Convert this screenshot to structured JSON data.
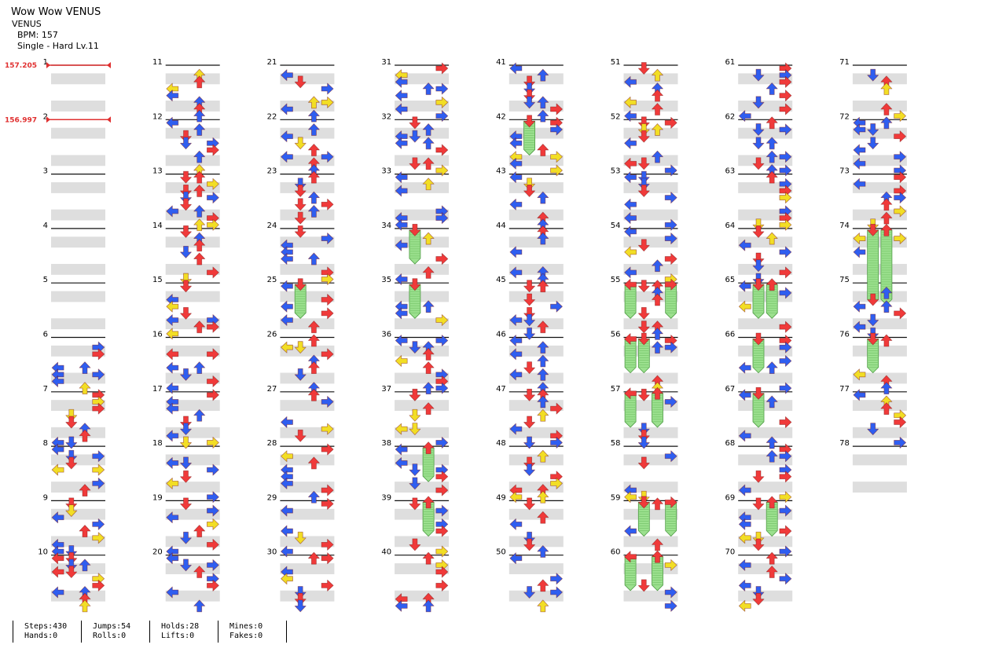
{
  "song": {
    "title": "Wow Wow VENUS",
    "artist": "VENUS",
    "bpm": "BPM: 157",
    "chart": "Single - Hard  Lv.11"
  },
  "bpm_changes": [
    {
      "measure": 1,
      "label": "157.205"
    },
    {
      "measure": 2,
      "label": "156.997"
    }
  ],
  "colors": {
    "left": "#2f5ef0",
    "down": "#f03a3a",
    "up": "#f03a3a",
    "right": "#f03a3a",
    "quarter": "#f03a3a",
    "eighth": "#2f5ef0",
    "sixteenth": "#f2de25",
    "hold": "#9be08e",
    "band": "#dedede",
    "bpm_marker": "#e03030"
  },
  "total_measures": 78,
  "arrow_icons": {
    "left": "left-arrow-icon",
    "down": "down-arrow-icon",
    "up": "up-arrow-icon",
    "right": "right-arrow-icon"
  },
  "stats": {
    "steps": "Steps:430",
    "hands": "Hands:0",
    "jumps": "Jumps:54",
    "rolls": "Rolls:0",
    "holds": "Holds:28",
    "lifts": "Lifts:0",
    "mines": "Mines:0",
    "fakes": "Fakes:0"
  }
}
